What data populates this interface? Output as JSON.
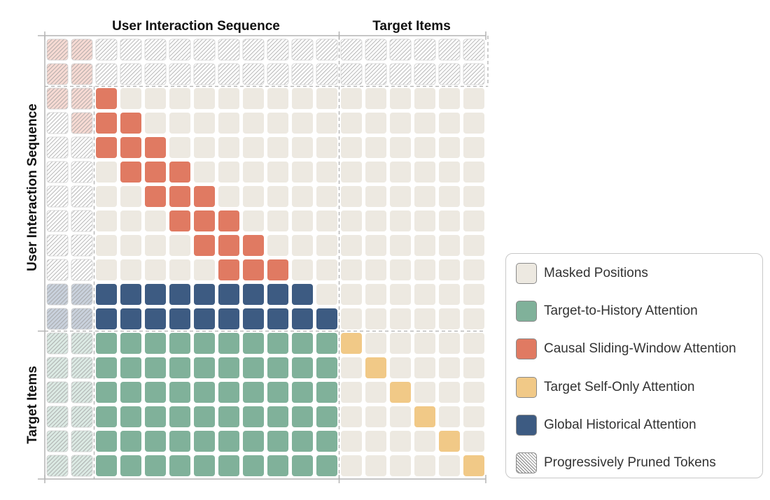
{
  "column_headers": {
    "sequence": "User Interaction Sequence",
    "targets": "Target Items"
  },
  "row_headers": {
    "sequence": "User Interaction Sequence",
    "targets": "Target Items"
  },
  "grid": {
    "sequence_length": 12,
    "target_count": 6,
    "cells": [
      [
        "P",
        "P",
        "P",
        "P",
        "P",
        "P",
        "P",
        "P",
        "P",
        "P",
        "P",
        "P",
        "P",
        "P",
        "P",
        "P",
        "P",
        "P"
      ],
      [
        "P",
        "P",
        "P",
        "P",
        "P",
        "P",
        "P",
        "P",
        "P",
        "P",
        "P",
        "P",
        "P",
        "P",
        "P",
        "P",
        "P",
        "P"
      ],
      [
        "P",
        "P",
        "C",
        "M",
        "M",
        "M",
        "M",
        "M",
        "M",
        "M",
        "M",
        "M",
        "M",
        "M",
        "M",
        "M",
        "M",
        "M"
      ],
      [
        "P",
        "P",
        "C",
        "C",
        "M",
        "M",
        "M",
        "M",
        "M",
        "M",
        "M",
        "M",
        "M",
        "M",
        "M",
        "M",
        "M",
        "M"
      ],
      [
        "P",
        "P",
        "C",
        "C",
        "C",
        "M",
        "M",
        "M",
        "M",
        "M",
        "M",
        "M",
        "M",
        "M",
        "M",
        "M",
        "M",
        "M"
      ],
      [
        "P",
        "P",
        "M",
        "C",
        "C",
        "C",
        "M",
        "M",
        "M",
        "M",
        "M",
        "M",
        "M",
        "M",
        "M",
        "M",
        "M",
        "M"
      ],
      [
        "P",
        "P",
        "M",
        "M",
        "C",
        "C",
        "C",
        "M",
        "M",
        "M",
        "M",
        "M",
        "M",
        "M",
        "M",
        "M",
        "M",
        "M"
      ],
      [
        "P",
        "P",
        "M",
        "M",
        "M",
        "C",
        "C",
        "C",
        "M",
        "M",
        "M",
        "M",
        "M",
        "M",
        "M",
        "M",
        "M",
        "M"
      ],
      [
        "P",
        "P",
        "M",
        "M",
        "M",
        "M",
        "C",
        "C",
        "C",
        "M",
        "M",
        "M",
        "M",
        "M",
        "M",
        "M",
        "M",
        "M"
      ],
      [
        "P",
        "P",
        "M",
        "M",
        "M",
        "M",
        "M",
        "C",
        "C",
        "C",
        "M",
        "M",
        "M",
        "M",
        "M",
        "M",
        "M",
        "M"
      ],
      [
        "P",
        "P",
        "G",
        "G",
        "G",
        "G",
        "G",
        "G",
        "G",
        "G",
        "G",
        "M",
        "M",
        "M",
        "M",
        "M",
        "M",
        "M"
      ],
      [
        "P",
        "P",
        "G",
        "G",
        "G",
        "G",
        "G",
        "G",
        "G",
        "G",
        "G",
        "G",
        "M",
        "M",
        "M",
        "M",
        "M",
        "M"
      ],
      [
        "P",
        "P",
        "T",
        "T",
        "T",
        "T",
        "T",
        "T",
        "T",
        "T",
        "T",
        "T",
        "S",
        "M",
        "M",
        "M",
        "M",
        "M"
      ],
      [
        "P",
        "P",
        "T",
        "T",
        "T",
        "T",
        "T",
        "T",
        "T",
        "T",
        "T",
        "T",
        "M",
        "S",
        "M",
        "M",
        "M",
        "M"
      ],
      [
        "P",
        "P",
        "T",
        "T",
        "T",
        "T",
        "T",
        "T",
        "T",
        "T",
        "T",
        "T",
        "M",
        "M",
        "S",
        "M",
        "M",
        "M"
      ],
      [
        "P",
        "P",
        "T",
        "T",
        "T",
        "T",
        "T",
        "T",
        "T",
        "T",
        "T",
        "T",
        "M",
        "M",
        "M",
        "S",
        "M",
        "M"
      ],
      [
        "P",
        "P",
        "T",
        "T",
        "T",
        "T",
        "T",
        "T",
        "T",
        "T",
        "T",
        "T",
        "M",
        "M",
        "M",
        "M",
        "S",
        "M"
      ],
      [
        "P",
        "P",
        "T",
        "T",
        "T",
        "T",
        "T",
        "T",
        "T",
        "T",
        "T",
        "T",
        "M",
        "M",
        "M",
        "M",
        "M",
        "S"
      ]
    ],
    "pruned_tint": [
      [
        "C",
        "C",
        "P",
        "P",
        "P",
        "P",
        "P",
        "P",
        "P",
        "P",
        "P",
        "P",
        "P",
        "P",
        "P",
        "P",
        "P",
        "P"
      ],
      [
        "C",
        "C",
        "P",
        "P",
        "P",
        "P",
        "P",
        "P",
        "P",
        "P",
        "P",
        "P",
        "P",
        "P",
        "P",
        "P",
        "P",
        "P"
      ],
      [
        "C",
        "C"
      ],
      [
        "P",
        "C"
      ],
      [
        "P",
        "P"
      ],
      [
        "P",
        "P"
      ],
      [
        "P",
        "P"
      ],
      [
        "P",
        "P"
      ],
      [
        "P",
        "P"
      ],
      [
        "P",
        "P"
      ],
      [
        "G",
        "G"
      ],
      [
        "G",
        "G"
      ],
      [
        "T",
        "T"
      ],
      [
        "T",
        "T"
      ],
      [
        "T",
        "T"
      ],
      [
        "T",
        "T"
      ],
      [
        "T",
        "T"
      ],
      [
        "T",
        "T"
      ]
    ]
  },
  "colors": {
    "masked": "#ede9e1",
    "target_to_history": "#80b19a",
    "causal_sliding_window": "#e07a62",
    "target_self_only": "#f1c987",
    "global_historical": "#3d5b82",
    "pruned_hatch": "#9a9a9a",
    "axis": "#b4b4b4",
    "divider": "#b0b0b0"
  },
  "legend": [
    {
      "key": "M",
      "label": "Masked Positions"
    },
    {
      "key": "T",
      "label": "Target-to-History Attention"
    },
    {
      "key": "C",
      "label": "Causal Sliding-Window Attention"
    },
    {
      "key": "S",
      "label": "Target Self-Only Attention"
    },
    {
      "key": "G",
      "label": "Global Historical Attention"
    },
    {
      "key": "P",
      "label": "Progressively Pruned Tokens"
    }
  ]
}
